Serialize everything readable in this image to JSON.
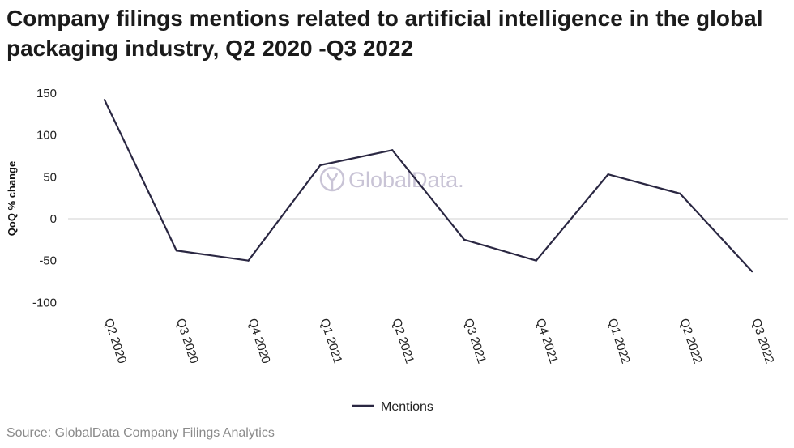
{
  "title": "Company filings mentions related to artificial intelligence in the global packaging industry, Q2 2020 -Q3 2022",
  "source": "Source: GlobalData Company Filings Analytics",
  "watermark": "GlobalData.",
  "chart_data": {
    "type": "line",
    "title": "Company filings mentions related to artificial intelligence in the global packaging industry, Q2 2020 -Q3 2022",
    "xlabel": "",
    "ylabel": "QoQ % change",
    "categories": [
      "Q2 2020",
      "Q3 2020",
      "Q4 2020",
      "Q1 2021",
      "Q2 2021",
      "Q3 2021",
      "Q4 2021",
      "Q1 2022",
      "Q2 2022",
      "Q3 2022"
    ],
    "series": [
      {
        "name": "Mentions",
        "color": "#2a2742",
        "values": [
          142,
          -38,
          -50,
          64,
          82,
          -25,
          -50,
          53,
          30,
          -63
        ]
      }
    ],
    "ylim": [
      -100,
      150
    ],
    "yticks": [
      150,
      100,
      50,
      0,
      -50,
      -100
    ],
    "grid": false,
    "zero_line": true,
    "legend": "bottom-center"
  }
}
